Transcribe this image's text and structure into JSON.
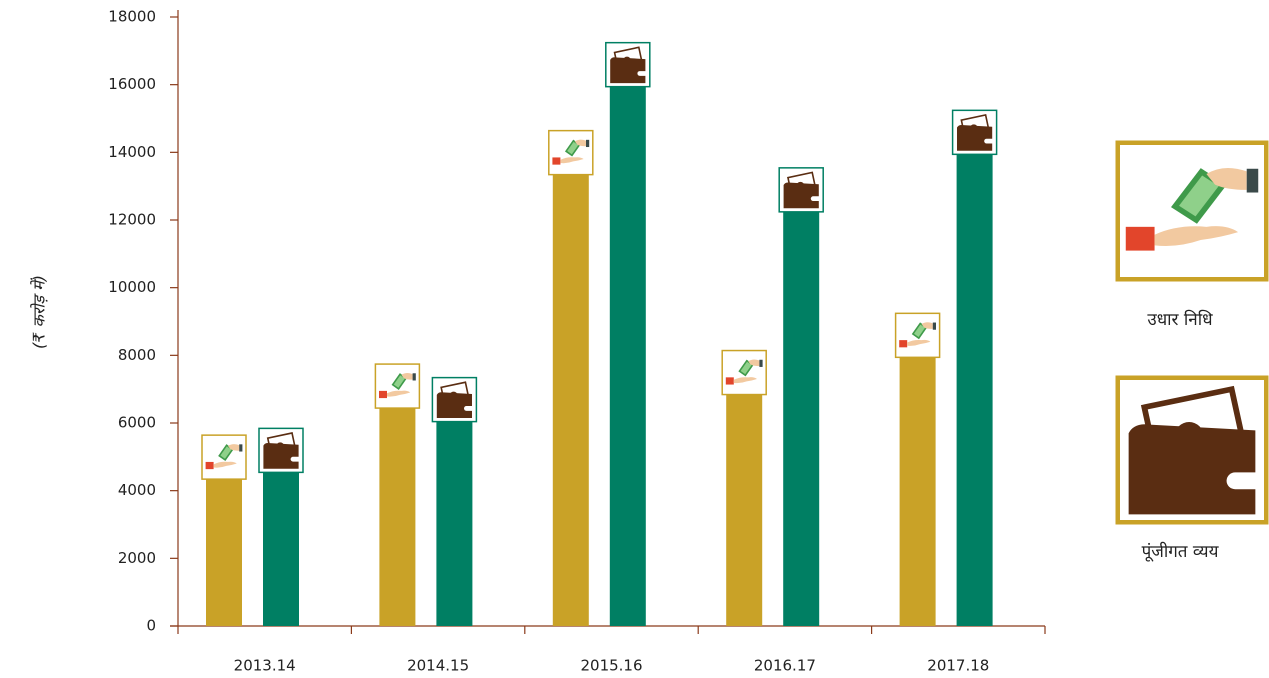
{
  "chart_data": {
    "type": "bar",
    "y_label": "(₹ करोड़ में)",
    "categories": [
      "2013.14",
      "2014.15",
      "2015.16",
      "2016.17",
      "2017.18"
    ],
    "series": [
      {
        "name": "उधार निधि",
        "color": "#c9a227",
        "values": [
          4400,
          6500,
          13400,
          6900,
          8000
        ]
      },
      {
        "name": "पूंजीगत व्यय",
        "color": "#007f63",
        "values": [
          4600,
          6100,
          16000,
          12300,
          14000
        ]
      }
    ],
    "ylim": [
      0,
      18000
    ],
    "yticks": [
      0,
      2000,
      4000,
      6000,
      8000,
      10000,
      12000,
      14000,
      16000,
      18000
    ]
  }
}
